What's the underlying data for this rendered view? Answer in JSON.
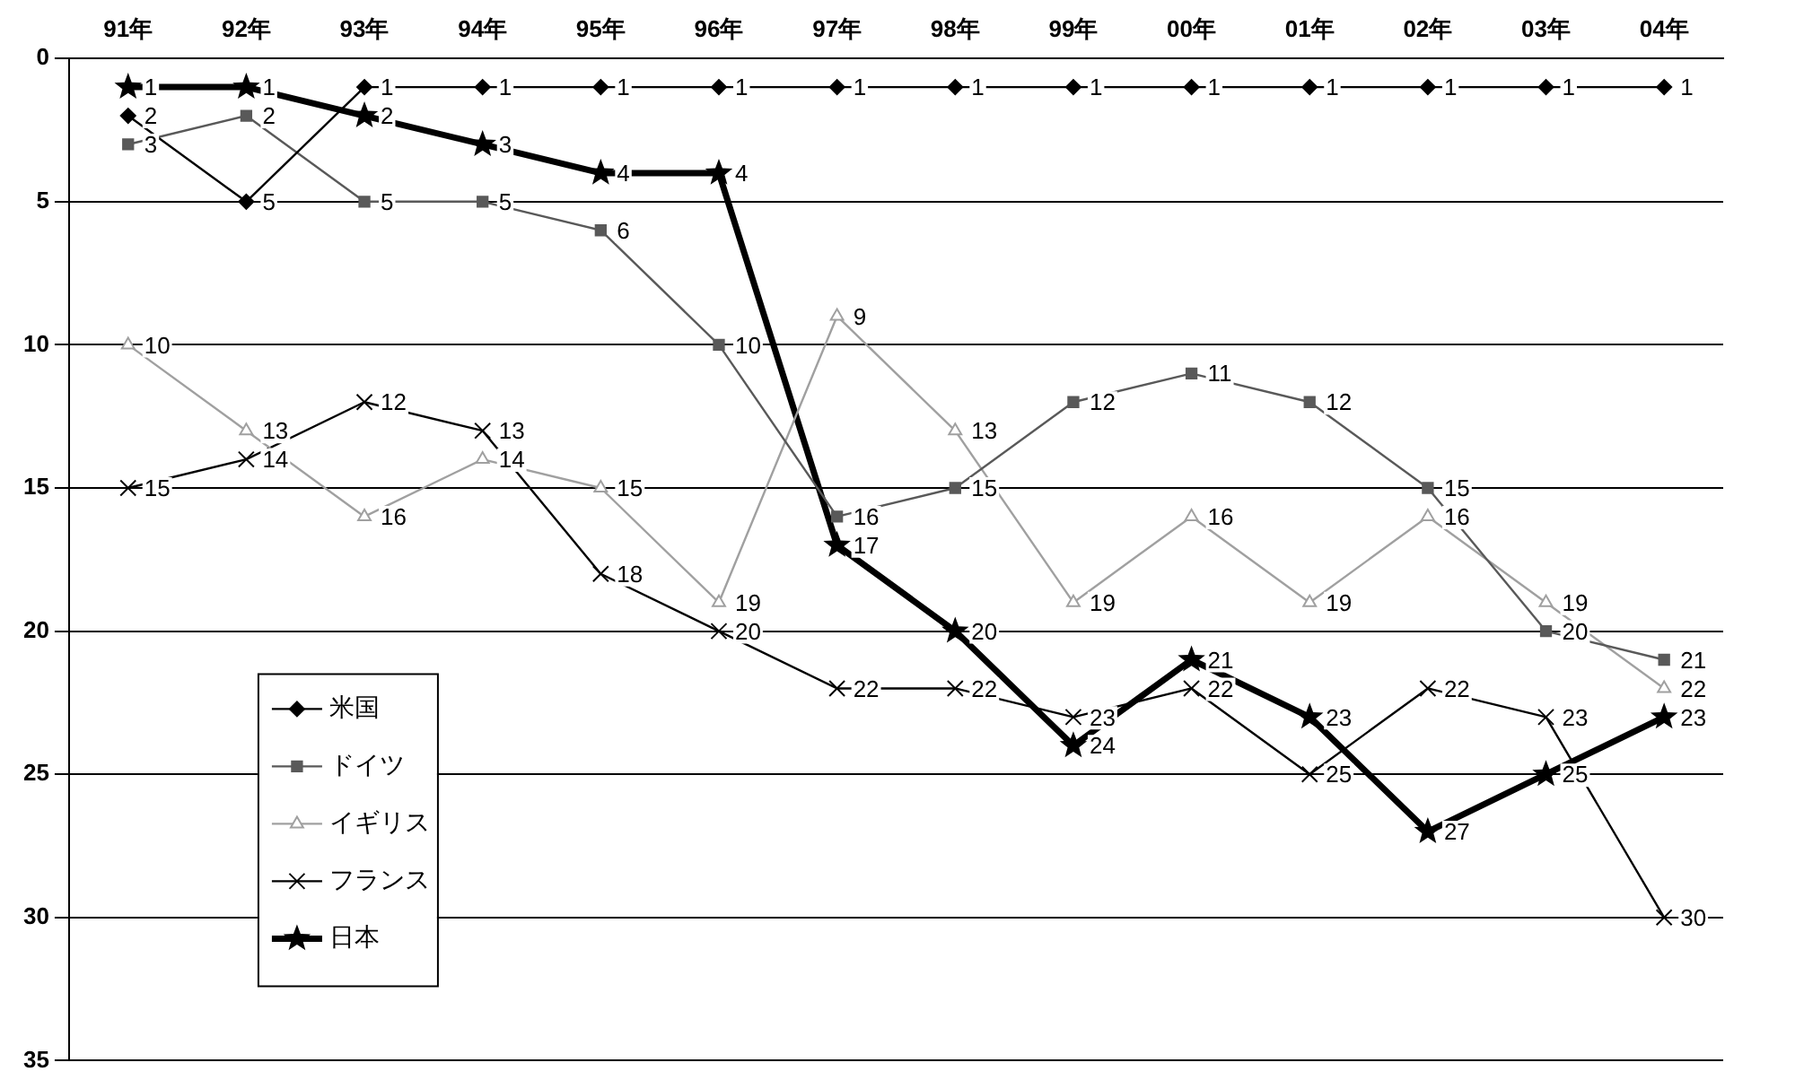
{
  "chart_data": {
    "type": "line",
    "categories": [
      "91年",
      "92年",
      "93年",
      "94年",
      "95年",
      "96年",
      "97年",
      "98年",
      "99年",
      "00年",
      "01年",
      "02年",
      "03年",
      "04年"
    ],
    "series": [
      {
        "name": "米国",
        "color": "#000000",
        "marker": "diamond",
        "values": [
          2,
          5,
          1,
          1,
          1,
          1,
          1,
          1,
          1,
          1,
          1,
          1,
          1,
          1
        ]
      },
      {
        "name": "ドイツ",
        "color": "#595959",
        "marker": "square",
        "values": [
          3,
          2,
          5,
          5,
          6,
          10,
          16,
          15,
          12,
          11,
          12,
          15,
          20,
          21
        ]
      },
      {
        "name": "イギリス",
        "color": "#a0a0a0",
        "marker": "triangle",
        "values": [
          10,
          13,
          16,
          14,
          15,
          19,
          9,
          13,
          19,
          16,
          19,
          16,
          19,
          22
        ]
      },
      {
        "name": "フランス",
        "color": "#000000",
        "marker": "cross",
        "values": [
          15,
          14,
          12,
          13,
          18,
          20,
          22,
          22,
          23,
          22,
          25,
          22,
          23,
          30
        ]
      },
      {
        "name": "日本",
        "color": "#000000",
        "marker": "star",
        "values": [
          1,
          1,
          2,
          3,
          4,
          4,
          17,
          20,
          24,
          21,
          23,
          27,
          25,
          23
        ]
      }
    ],
    "ylim": [
      35,
      0
    ],
    "yticks": [
      0,
      5,
      10,
      15,
      20,
      25,
      30,
      35
    ],
    "grid": "y",
    "legend": "bottom left",
    "data_labels": true,
    "line_style": "solid"
  }
}
